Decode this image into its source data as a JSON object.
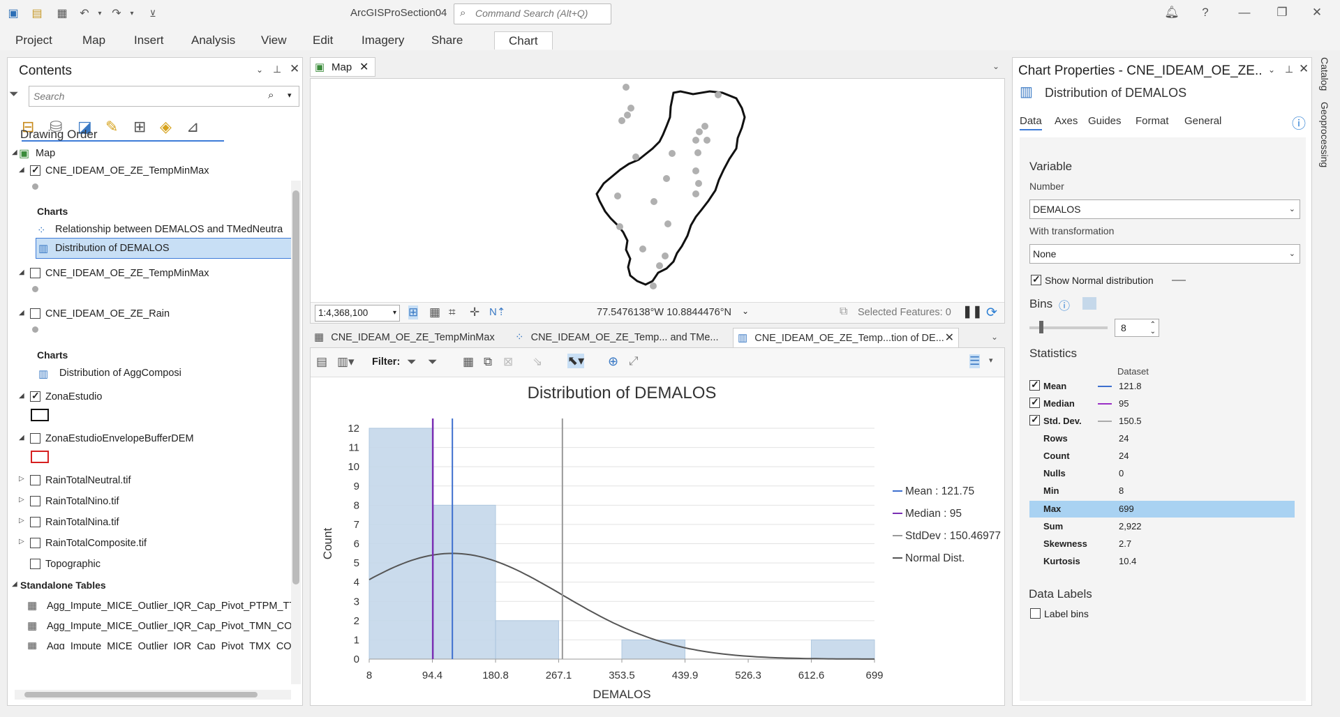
{
  "app": {
    "title": "ArcGISProSection04",
    "command_search_placeholder": "Command Search (Alt+Q)",
    "ribbon_tabs": [
      "Project",
      "Map",
      "Insert",
      "Analysis",
      "View",
      "Edit",
      "Imagery",
      "Share",
      "Chart"
    ],
    "active_tab": "Chart"
  },
  "contents": {
    "title": "Contents",
    "search_placeholder": "Search",
    "drawing_order": "Drawing Order",
    "map_label": "Map",
    "layer1": "CNE_IDEAM_OE_ZE_TempMinMax",
    "charts_heading": "Charts",
    "chart1": "Relationship between DEMALOS and TMedNeutra",
    "chart2": "Distribution of DEMALOS",
    "layer2": "CNE_IDEAM_OE_ZE_TempMinMax",
    "layer3": "CNE_IDEAM_OE_ZE_Rain",
    "charts_heading2": "Charts",
    "chart3": "Distribution of AggComposi",
    "layer4": "ZonaEstudio",
    "layer5": "ZonaEstudioEnvelopeBufferDEM",
    "layer6": "RainTotalNeutral.tif",
    "layer7": "RainTotalNino.tif",
    "layer8": "RainTotalNina.tif",
    "layer9": "RainTotalComposite.tif",
    "layer10": "Topographic",
    "standalone": "Standalone Tables",
    "table1": "Agg_Impute_MICE_Outlier_IQR_Cap_Pivot_PTPM_TT_",
    "table2": "Agg_Impute_MICE_Outlier_IQR_Cap_Pivot_TMN_CON",
    "table3": "Agg_Impute_MICE_Outlier_IQR_Cap_Pivot_TMX_CON"
  },
  "map": {
    "tab_label": "Map",
    "scale": "1:4,368,100",
    "coordinates": "77.5476138°W 10.8844476°N",
    "selected_features": "Selected Features: 0"
  },
  "doc_tabs": {
    "tab1": "CNE_IDEAM_OE_ZE_TempMinMax",
    "tab2": "CNE_IDEAM_OE_ZE_Temp... and TMe...",
    "tab3": "CNE_IDEAM_OE_ZE_Temp...tion of DE..."
  },
  "chart_toolbar": {
    "filter_label": "Filter:"
  },
  "chart_data": {
    "type": "bar",
    "title": "Distribution of DEMALOS",
    "xlabel": "DEMALOS",
    "ylabel": "Count",
    "bin_edges": [
      8,
      94.4,
      180.8,
      267.1,
      353.5,
      439.9,
      526.3,
      612.6,
      699
    ],
    "x_tick_labels": [
      "8",
      "94.4",
      "180.8",
      "267.1",
      "353.5",
      "439.9",
      "526.3",
      "612.6",
      "699"
    ],
    "values": [
      12,
      8,
      2,
      0,
      1,
      0,
      0,
      1
    ],
    "ylim": [
      0,
      12
    ],
    "y_ticks": [
      "0",
      "1",
      "2",
      "3",
      "4",
      "5",
      "6",
      "7",
      "8",
      "9",
      "10",
      "11",
      "12"
    ],
    "mean": 121.75,
    "median": 95,
    "std_dev": 150.46977,
    "legend": [
      "Mean : 121.75",
      "Median : 95",
      "StdDev : 150.46977",
      "Normal Dist."
    ],
    "legend_placement": "right",
    "colors": {
      "bar": "#c5d8ea",
      "mean": "#3d6fce",
      "median": "#7a2fb3",
      "stddev": "#999999",
      "normal": "#555555"
    }
  },
  "props": {
    "title": "Chart Properties - CNE_IDEAM_OE_ZE...",
    "subtitle": "Distribution of DEMALOS",
    "tabs": [
      "Data",
      "Axes",
      "Guides",
      "Format",
      "General"
    ],
    "variable_heading": "Variable",
    "number_label": "Number",
    "number_value": "DEMALOS",
    "transform_label": "With transformation",
    "transform_value": "None",
    "show_normal": "Show Normal distribution",
    "bins_heading": "Bins",
    "bins_value": "8",
    "stats_heading": "Statistics",
    "dataset_header": "Dataset",
    "stats": [
      {
        "label": "Mean",
        "value": "121.8"
      },
      {
        "label": "Median",
        "value": "95"
      },
      {
        "label": "Std. Dev.",
        "value": "150.5"
      },
      {
        "label": "Rows",
        "value": "24"
      },
      {
        "label": "Count",
        "value": "24"
      },
      {
        "label": "Nulls",
        "value": "0"
      },
      {
        "label": "Min",
        "value": "8"
      },
      {
        "label": "Max",
        "value": "699"
      },
      {
        "label": "Sum",
        "value": "2,922"
      },
      {
        "label": "Skewness",
        "value": "2.7"
      },
      {
        "label": "Kurtosis",
        "value": "10.4"
      }
    ],
    "data_labels_heading": "Data Labels",
    "label_bins": "Label bins"
  },
  "side_tabs": {
    "catalog": "Catalog",
    "geoprocessing": "Geoprocessing"
  }
}
